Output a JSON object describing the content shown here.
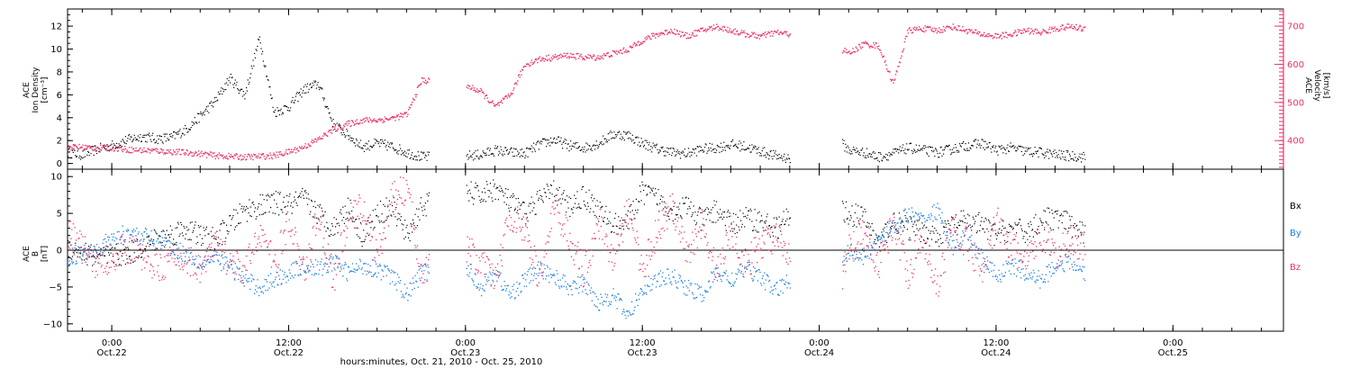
{
  "colors": {
    "black": "#000000",
    "pink": "#ee3366",
    "blue": "#1a7fe0"
  },
  "xaxis": {
    "title": "hours:minutes, Oct. 21, 2010 - Oct. 25, 2010",
    "ticks": [
      {
        "time": "0:00",
        "date": "Oct.22"
      },
      {
        "time": "12:00",
        "date": "Oct.22"
      },
      {
        "time": "0:00",
        "date": "Oct.23"
      },
      {
        "time": "12:00",
        "date": "Oct.23"
      },
      {
        "time": "0:00",
        "date": "Oct.24"
      },
      {
        "time": "12:00",
        "date": "Oct.24"
      },
      {
        "time": "0:00",
        "date": "Oct.25"
      }
    ]
  },
  "chart_data": [
    {
      "type": "scatter",
      "panel": "top",
      "x_unit": "hours since Oct. 21, 2010 00:00",
      "xlim": [
        21.0,
        103.5
      ],
      "left_axis": {
        "label_lines": [
          "ACE",
          "Ion Density",
          "[cm⁻³]"
        ],
        "ylim": [
          -0.5,
          13.5
        ],
        "ticks": [
          "0",
          "2",
          "4",
          "6",
          "8",
          "10",
          "12"
        ],
        "tick_values": [
          0,
          2,
          4,
          6,
          8,
          10,
          12
        ]
      },
      "right_axis": {
        "label_lines": [
          "ACE",
          "Velocity",
          "[km/s]"
        ],
        "ylim": [
          325,
          745
        ],
        "ticks": [
          "400",
          "500",
          "600",
          "700"
        ],
        "tick_values": [
          400,
          500,
          600,
          700
        ]
      },
      "data_gaps_hours": [
        [
          45.5,
          48.0
        ],
        [
          70.0,
          73.5
        ],
        [
          90.0,
          103.5
        ]
      ],
      "series": [
        {
          "color": "#000000",
          "axis": "left",
          "x": [
            21,
            22,
            23,
            24,
            25,
            26,
            27,
            28,
            29,
            30,
            31,
            32,
            33,
            34,
            35,
            36,
            37,
            38,
            39,
            40,
            41,
            42,
            43,
            44,
            45,
            48,
            49,
            50,
            51,
            52,
            53,
            54,
            55,
            56,
            57,
            58,
            59,
            60,
            61,
            62,
            63,
            64,
            65,
            66,
            67,
            68,
            69,
            70,
            73.5,
            74,
            75,
            76,
            77,
            78,
            79,
            80,
            81,
            82,
            83,
            84,
            85,
            86,
            87,
            88,
            89,
            90
          ],
          "values": [
            1.0,
            0.8,
            1.3,
            1.6,
            2.1,
            2.4,
            2.2,
            2.3,
            3.0,
            4.2,
            5.5,
            7.5,
            6.0,
            11.0,
            4.5,
            5.0,
            6.5,
            7.0,
            3.5,
            2.5,
            1.5,
            1.8,
            1.5,
            1.0,
            0.6,
            0.7,
            0.8,
            1.2,
            1.0,
            0.9,
            1.7,
            2.1,
            1.6,
            1.4,
            1.8,
            2.6,
            2.5,
            1.8,
            1.3,
            1.0,
            0.9,
            1.3,
            1.4,
            1.7,
            1.5,
            1.1,
            0.7,
            0.5,
            1.8,
            1.2,
            1.0,
            0.6,
            0.9,
            1.4,
            1.2,
            1.0,
            1.3,
            1.6,
            1.8,
            1.2,
            1.4,
            1.1,
            1.0,
            0.8,
            0.7,
            0.6
          ]
        },
        {
          "color": "#ee3366",
          "axis": "right",
          "x": [
            21,
            22,
            23,
            24,
            25,
            26,
            27,
            28,
            29,
            30,
            31,
            32,
            33,
            34,
            35,
            36,
            37,
            38,
            39,
            40,
            41,
            42,
            43,
            44,
            45,
            48,
            49,
            50,
            51,
            52,
            53,
            54,
            55,
            56,
            57,
            58,
            59,
            60,
            61,
            62,
            63,
            64,
            65,
            66,
            67,
            68,
            69,
            70,
            73.5,
            74,
            75,
            76,
            77,
            78,
            79,
            80,
            81,
            82,
            83,
            84,
            85,
            86,
            87,
            88,
            89,
            90
          ],
          "values": [
            385,
            384,
            382,
            383,
            378,
            376,
            375,
            372,
            370,
            367,
            362,
            360,
            358,
            360,
            362,
            372,
            385,
            405,
            430,
            445,
            455,
            455,
            460,
            470,
            560,
            545,
            530,
            490,
            520,
            600,
            615,
            620,
            625,
            620,
            620,
            630,
            640,
            665,
            680,
            690,
            675,
            690,
            700,
            690,
            680,
            675,
            685,
            680,
            640,
            630,
            655,
            650,
            550,
            690,
            695,
            690,
            700,
            690,
            680,
            675,
            680,
            690,
            685,
            695,
            700,
            695
          ]
        }
      ]
    },
    {
      "type": "scatter",
      "panel": "bottom",
      "x_unit": "hours since Oct. 21, 2010 00:00",
      "xlim": [
        21.0,
        103.5
      ],
      "axis": {
        "label_lines": [
          "ACE",
          "B",
          "[nT]"
        ],
        "ylim": [
          -11,
          11
        ],
        "ticks": [
          "10",
          "5",
          "0",
          "−5",
          "−10"
        ],
        "tick_values": [
          10,
          5,
          0,
          -5,
          -10
        ]
      },
      "reference_line_value": 0,
      "legend": [
        "Bx",
        "By",
        "Bz"
      ],
      "legend_placement": "right",
      "series": [
        {
          "name": "Bx",
          "color": "#000000",
          "x": [
            21,
            23,
            25,
            27,
            29,
            30,
            31,
            32,
            33,
            34,
            35,
            36,
            37,
            38,
            39,
            40,
            41,
            42,
            43,
            44,
            45,
            48,
            49,
            50,
            51,
            52,
            53,
            54,
            55,
            56,
            57,
            58,
            59,
            60,
            61,
            62,
            63,
            64,
            65,
            66,
            67,
            68,
            69,
            70,
            73.5,
            74,
            75,
            76,
            77,
            78,
            79,
            80,
            81,
            82,
            83,
            84,
            85,
            86,
            87,
            88,
            89,
            90
          ],
          "values": [
            0.5,
            -1.0,
            -0.5,
            1.5,
            3.0,
            2.0,
            1.5,
            3.5,
            5.5,
            6.0,
            6.5,
            6.2,
            7.0,
            5.0,
            3.0,
            6.0,
            2.0,
            5.0,
            6.0,
            2.0,
            6.0,
            8.0,
            7.5,
            8.5,
            6.5,
            5.0,
            7.0,
            8.0,
            6.0,
            7.5,
            5.5,
            3.5,
            4.0,
            8.0,
            7.0,
            5.5,
            6.0,
            4.0,
            5.5,
            3.5,
            4.5,
            4.0,
            3.0,
            4.5,
            5.5,
            5.0,
            4.5,
            1.0,
            4.0,
            3.0,
            2.5,
            2.0,
            3.5,
            4.0,
            3.5,
            2.0,
            3.0,
            2.5,
            4.0,
            4.5,
            3.5,
            2.0
          ]
        },
        {
          "name": "By",
          "color": "#1a7fe0",
          "x": [
            21,
            23,
            25,
            27,
            29,
            30,
            31,
            32,
            33,
            34,
            35,
            36,
            37,
            38,
            39,
            40,
            41,
            42,
            43,
            44,
            45,
            48,
            49,
            50,
            51,
            52,
            53,
            54,
            55,
            56,
            57,
            58,
            59,
            60,
            61,
            62,
            63,
            64,
            65,
            66,
            67,
            68,
            69,
            70,
            73.5,
            74,
            75,
            76,
            77,
            78,
            79,
            80,
            81,
            82,
            83,
            84,
            85,
            86,
            87,
            88,
            89,
            90
          ],
          "values": [
            -1.0,
            0.5,
            2.5,
            1.5,
            -0.5,
            -1.5,
            -1.2,
            -2.0,
            -4.0,
            -5.0,
            -4.0,
            -3.0,
            -2.0,
            -2.5,
            -1.5,
            -3.0,
            -2.0,
            -2.5,
            -3.5,
            -6.0,
            -3.0,
            -2.0,
            -5.0,
            -3.0,
            -6.0,
            -4.0,
            -2.5,
            -3.5,
            -5.0,
            -4.5,
            -7.0,
            -6.0,
            -9.0,
            -5.0,
            -4.0,
            -3.5,
            -5.0,
            -6.0,
            -3.0,
            -4.0,
            -2.5,
            -3.5,
            -5.5,
            -4.0,
            -1.5,
            0.0,
            -1.0,
            2.0,
            3.0,
            5.0,
            4.0,
            5.5,
            0.5,
            2.0,
            -1.0,
            -3.5,
            -2.0,
            -3.0,
            -4.0,
            -2.0,
            -1.5,
            -3.0
          ]
        },
        {
          "name": "Bz",
          "color": "#ee3366",
          "x": [
            21,
            23,
            25,
            27,
            29,
            30,
            31,
            32,
            33,
            34,
            35,
            36,
            37,
            38,
            39,
            40,
            41,
            42,
            43,
            44,
            45,
            48,
            49,
            50,
            51,
            52,
            53,
            54,
            55,
            56,
            57,
            58,
            59,
            60,
            61,
            62,
            63,
            64,
            65,
            66,
            67,
            68,
            69,
            70,
            73.5,
            74,
            75,
            76,
            77,
            78,
            79,
            80,
            81,
            82,
            83,
            84,
            85,
            86,
            87,
            88,
            89,
            90
          ],
          "values": [
            2.5,
            -2.0,
            0.5,
            -2.0,
            -1.0,
            -2.5,
            0.5,
            -1.5,
            -3.0,
            3.0,
            -2.0,
            4.0,
            -3.0,
            5.0,
            -4.0,
            4.0,
            6.0,
            -1.0,
            7.0,
            8.5,
            -3.0,
            0.5,
            -2.0,
            -4.0,
            5.0,
            3.0,
            -4.0,
            6.0,
            2.0,
            -3.0,
            4.0,
            -1.0,
            5.5,
            -2.5,
            3.0,
            6.0,
            -1.0,
            4.0,
            -3.0,
            3.0,
            -2.0,
            1.0,
            2.0,
            -1.5,
            -4.0,
            0.0,
            2.5,
            -2.0,
            4.0,
            -3.0,
            2.0,
            -5.0,
            3.5,
            1.0,
            -2.5,
            4.0,
            0.5,
            -1.5,
            2.0,
            -1.0,
            1.5,
            0.5
          ]
        }
      ]
    }
  ]
}
